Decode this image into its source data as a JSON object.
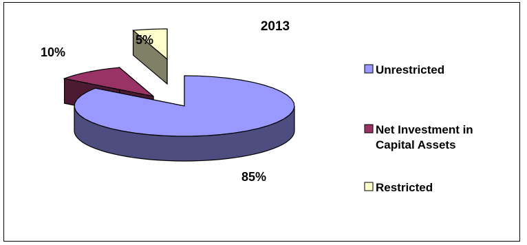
{
  "chart_data": {
    "type": "pie",
    "title": "2013",
    "categories": [
      "Unrestricted",
      "Net Investment in Capital Assets",
      "Restricted"
    ],
    "values": [
      85,
      10,
      5
    ],
    "data_labels": [
      "85%",
      "10%",
      "5%"
    ],
    "colors": {
      "unrestricted_top": "#9999ff",
      "unrestricted_side": "#4d4d80",
      "net_investment_top": "#993366",
      "net_investment_side": "#4d1a33",
      "restricted_top": "#ffffcc",
      "restricted_side": "#808066"
    },
    "style": "3d-exploded",
    "legend": {
      "position": "right",
      "items": [
        {
          "label": "Unrestricted",
          "color": "#9999ff"
        },
        {
          "label_line1": "Net Investment in",
          "label_line2": "Capital Assets",
          "color": "#993366"
        },
        {
          "label": "Restricted",
          "color": "#ffffcc"
        }
      ]
    }
  }
}
